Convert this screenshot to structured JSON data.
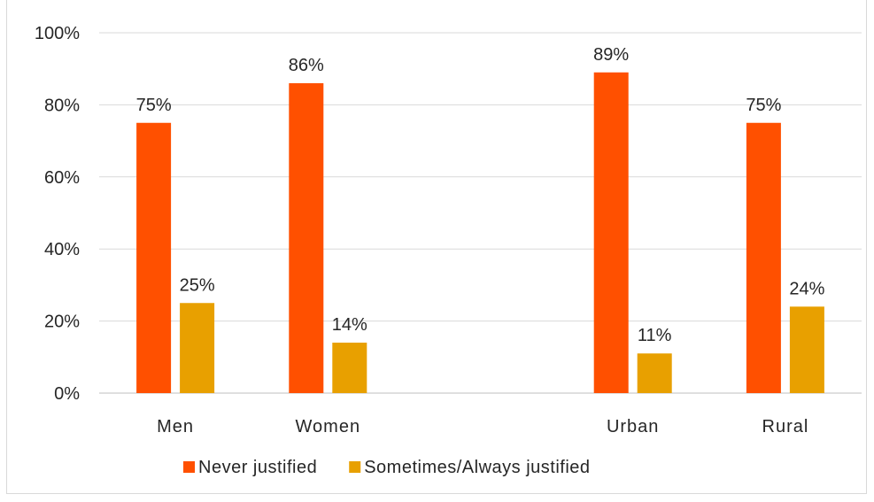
{
  "chart_data": {
    "type": "bar",
    "categories": [
      "Men",
      "Women",
      "",
      "Urban",
      "Rural"
    ],
    "series": [
      {
        "name": "Never justified",
        "values": [
          75,
          86,
          null,
          89,
          75
        ],
        "labels": [
          "75%",
          "86%",
          "",
          "89%",
          "75%"
        ],
        "color": "#ff5000"
      },
      {
        "name": "Sometimes/Always justified",
        "values": [
          25,
          14,
          null,
          11,
          24
        ],
        "labels": [
          "25%",
          "14%",
          "",
          "11%",
          "24%"
        ],
        "color": "#e8a000"
      }
    ],
    "ylim": [
      0,
      100
    ],
    "yticks": [
      0,
      20,
      40,
      60,
      80,
      100
    ],
    "ytick_labels": [
      "0%",
      "20%",
      "40%",
      "60%",
      "80%",
      "100%"
    ],
    "grid": true,
    "legend_position": "bottom",
    "gridline_color": "#d9d9d9",
    "axis_color": "#bfbfbf"
  }
}
